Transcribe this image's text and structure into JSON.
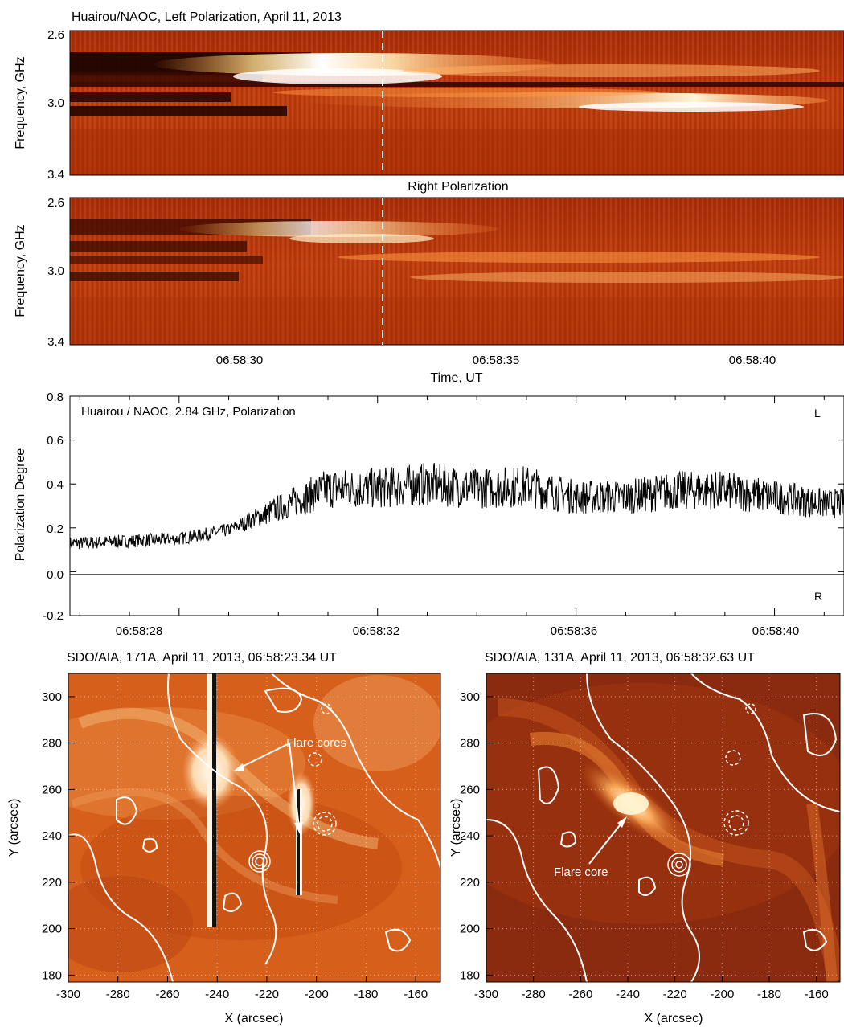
{
  "panels": {
    "left_pol": {
      "title": "Huairou/NAOC, Left Polarization, April 11, 2013",
      "ylabel": "Frequency, GHz",
      "yticks": [
        "2.6",
        "3.0",
        "3.4"
      ]
    },
    "right_pol": {
      "title": "Right Polarization",
      "ylabel": "Frequency, GHz",
      "yticks": [
        "2.6",
        "3.0",
        "3.4"
      ],
      "xticks": [
        "06:58:30",
        "06:58:35",
        "06:58:40"
      ],
      "xlabel": "Time, UT"
    },
    "polarization": {
      "title": "Huairou / NAOC, 2.84 GHz, Polarization",
      "ylabel": "Polarization Degree",
      "yticks": [
        "0.8",
        "0.6",
        "0.4",
        "0.2",
        "0.0",
        "-0.2"
      ],
      "xticks": [
        "06:58:28",
        "06:58:32",
        "06:58:36",
        "06:58:40"
      ],
      "label_L": "L",
      "label_R": "R"
    },
    "aia171": {
      "title": "SDO/AIA, 171A, April 11, 2013, 06:58:23.34 UT",
      "annotation": "Flare cores",
      "xlabel": "X (arcsec)",
      "ylabel": "Y (arcsec)",
      "xticks": [
        "-300",
        "-280",
        "-260",
        "-240",
        "-220",
        "-200",
        "-180",
        "-160"
      ],
      "yticks": [
        "300",
        "280",
        "260",
        "240",
        "220",
        "200",
        "180"
      ]
    },
    "aia131": {
      "title": "SDO/AIA, 131A, April 11, 2013, 06:58:32.63 UT",
      "annotation": "Flare core",
      "xlabel": "X (arcsec)",
      "ylabel": "Y (arcsec)",
      "xticks": [
        "-300",
        "-280",
        "-260",
        "-240",
        "-220",
        "-200",
        "-180",
        "-160"
      ],
      "yticks": [
        "300",
        "280",
        "260",
        "240",
        "220",
        "200",
        "180"
      ]
    }
  },
  "colors": {
    "dynamic_spectrum_base": "#b1320a",
    "burst_bright": "#fff3d6",
    "aia171_base": "#d9631e",
    "aia131_base": "#8c2a10",
    "contour": "#ffffff",
    "trace": "#000000"
  },
  "chart_data": [
    {
      "type": "heatmap",
      "title": "Huairou/NAOC, Left Polarization, April 11, 2013",
      "ylabel": "Frequency, GHz",
      "ylim": [
        3.4,
        2.6
      ],
      "xlim": [
        "06:58:25.8",
        "06:58:41.4"
      ],
      "marker_time": "06:58:32.6"
    },
    {
      "type": "heatmap",
      "title": "Right Polarization",
      "xlabel": "Time, UT",
      "ylabel": "Frequency, GHz",
      "ylim": [
        3.4,
        2.6
      ],
      "xlim": [
        "06:58:25.8",
        "06:58:41.4"
      ],
      "marker_time": "06:58:32.6"
    },
    {
      "type": "line",
      "title": "Huairou / NAOC, 2.84 GHz, Polarization",
      "ylabel": "Polarization Degree",
      "ylim": [
        -0.2,
        0.8
      ],
      "xlim": [
        "06:58:25.8",
        "06:58:41.4"
      ],
      "x": [
        "06:58:26",
        "06:58:27",
        "06:58:28",
        "06:58:29",
        "06:58:30",
        "06:58:31",
        "06:58:32",
        "06:58:33",
        "06:58:34",
        "06:58:35",
        "06:58:36",
        "06:58:37",
        "06:58:38",
        "06:58:39",
        "06:58:40",
        "06:58:41"
      ],
      "values": [
        0.13,
        0.14,
        0.15,
        0.19,
        0.29,
        0.38,
        0.38,
        0.4,
        0.38,
        0.39,
        0.34,
        0.34,
        0.37,
        0.37,
        0.34,
        0.31
      ]
    },
    {
      "type": "heatmap",
      "title": "SDO/AIA, 171A, April 11, 2013, 06:58:23.34 UT",
      "xlabel": "X (arcsec)",
      "ylabel": "Y (arcsec)",
      "xlim": [
        -300,
        -150
      ],
      "ylim": [
        177,
        310
      ]
    },
    {
      "type": "heatmap",
      "title": "SDO/AIA, 131A, April 11, 2013, 06:58:32.63 UT",
      "xlabel": "X (arcsec)",
      "ylabel": "Y (arcsec)",
      "xlim": [
        -300,
        -150
      ],
      "ylim": [
        177,
        310
      ]
    }
  ]
}
